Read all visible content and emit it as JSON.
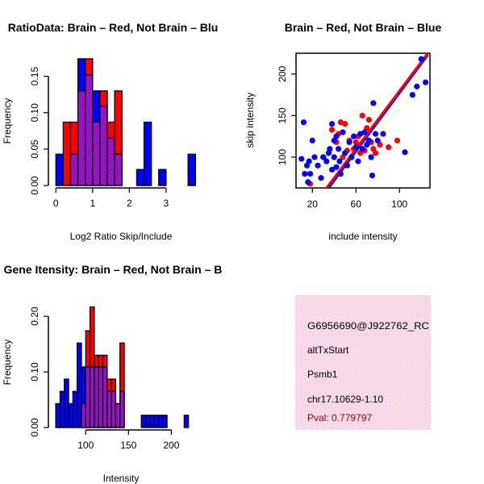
{
  "colors": {
    "red": "#ff0000",
    "blue": "#0000ff",
    "purple": "#a020f0",
    "overlap_hatch": "#8b008b",
    "panel_bg": "#f9e0ef",
    "pval_text": "#8b0000"
  },
  "chart_data": [
    {
      "type": "bar",
      "title": "RatioData: Brain – Red, Not Brain – Blu",
      "xlabel": "Log2 Ratio Skip/Include",
      "ylabel": "Frequency",
      "xlim": [
        -0.05,
        3.75
      ],
      "ylim": [
        0,
        0.175
      ],
      "xticks": [
        0,
        1,
        2,
        3
      ],
      "xtick_labels": [
        "0",
        "1",
        "2",
        "3"
      ],
      "yticks": [
        0.0,
        0.05,
        0.1,
        0.15
      ],
      "ytick_labels": [
        "0.00",
        "0.05",
        "0.10",
        "0.15"
      ],
      "bin_width": 0.2,
      "bin_starts": [
        0.0,
        0.2,
        0.4,
        0.6,
        0.8,
        1.0,
        1.2,
        1.4,
        1.6,
        1.8,
        2.0,
        2.2,
        2.4,
        2.6,
        2.8,
        3.0,
        3.2,
        3.4,
        3.6
      ],
      "series": [
        {
          "name": "Brain",
          "color": "red",
          "values": [
            0.0,
            0.087,
            0.087,
            0.13,
            0.174,
            0.087,
            0.13,
            0.087,
            0.13,
            0.0,
            0.0,
            0.0,
            0.0,
            0.0,
            0.0,
            0.0,
            0.0,
            0.0,
            0.0
          ]
        },
        {
          "name": "Not Brain",
          "color": "blue",
          "values": [
            0.043,
            0.0,
            0.043,
            0.174,
            0.152,
            0.13,
            0.109,
            0.065,
            0.043,
            0.0,
            0.0,
            0.022,
            0.087,
            0.0,
            0.022,
            0.0,
            0.0,
            0.0,
            0.043
          ]
        }
      ]
    },
    {
      "type": "scatter",
      "title": "Brain – Red, Not Brain – Blue",
      "xlabel": "include intensity",
      "ylabel": "skip intensity",
      "xlim": [
        5,
        128
      ],
      "ylim": [
        63,
        225
      ],
      "xticks": [
        20,
        60,
        100
      ],
      "xtick_labels": [
        "20",
        "60",
        "100"
      ],
      "yticks": [
        100,
        150,
        200
      ],
      "ytick_labels": [
        "100",
        "150",
        "200"
      ],
      "series": [
        {
          "name": "Brain",
          "color": "red",
          "points": [
            [
              18,
              68
            ],
            [
              30,
              100
            ],
            [
              38,
              133
            ],
            [
              42,
              118
            ],
            [
              44,
              128
            ],
            [
              46,
              142
            ],
            [
              48,
              100
            ],
            [
              50,
              140
            ],
            [
              52,
              108
            ],
            [
              54,
              120
            ],
            [
              56,
              100
            ],
            [
              58,
              110
            ],
            [
              60,
              118
            ],
            [
              62,
              125
            ],
            [
              64,
              105
            ],
            [
              66,
              150
            ],
            [
              68,
              108
            ],
            [
              70,
              135
            ],
            [
              72,
              145
            ],
            [
              74,
              118
            ],
            [
              76,
              110
            ],
            [
              78,
              105
            ],
            [
              82,
              115
            ],
            [
              90,
              112
            ],
            [
              98,
              120
            ]
          ],
          "fit_line": [
            [
              33,
              63
            ],
            [
              126,
              225
            ]
          ]
        },
        {
          "name": "Not Brain",
          "color": "blue",
          "points": [
            [
              10,
              98
            ],
            [
              12,
              142
            ],
            [
              13,
              80
            ],
            [
              15,
              90
            ],
            [
              16,
              70
            ],
            [
              17,
              95
            ],
            [
              18,
              80
            ],
            [
              20,
              120
            ],
            [
              22,
              100
            ],
            [
              25,
              90
            ],
            [
              28,
              75
            ],
            [
              30,
              100
            ],
            [
              33,
              95
            ],
            [
              35,
              105
            ],
            [
              36,
              110
            ],
            [
              38,
              140
            ],
            [
              38,
              85
            ],
            [
              40,
              100
            ],
            [
              40,
              120
            ],
            [
              42,
              88
            ],
            [
              42,
              125
            ],
            [
              44,
              110
            ],
            [
              45,
              95
            ],
            [
              46,
              80
            ],
            [
              48,
              130
            ],
            [
              50,
              105
            ],
            [
              52,
              90
            ],
            [
              54,
              118
            ],
            [
              56,
              100
            ],
            [
              58,
              125
            ],
            [
              60,
              112
            ],
            [
              62,
              95
            ],
            [
              64,
              128
            ],
            [
              66,
              110
            ],
            [
              68,
              130
            ],
            [
              70,
              115
            ],
            [
              72,
              120
            ],
            [
              74,
              100
            ],
            [
              75,
              78
            ],
            [
              76,
              165
            ],
            [
              78,
              128
            ],
            [
              80,
              120
            ],
            [
              85,
              128
            ],
            [
              105,
              106
            ],
            [
              112,
              175
            ],
            [
              116,
              185
            ],
            [
              120,
              218
            ],
            [
              124,
              190
            ]
          ],
          "fit_line": [
            [
              35,
              63
            ],
            [
              126,
              223
            ]
          ]
        }
      ]
    },
    {
      "type": "bar",
      "title": "Gene Itensity: Brain – Red, Not Brain – B",
      "xlabel": "Intensity",
      "ylabel": "Frequency",
      "xlim": [
        63,
        226
      ],
      "ylim": [
        0,
        0.235
      ],
      "xticks": [
        100,
        150,
        200
      ],
      "xtick_labels": [
        "100",
        "150",
        "200"
      ],
      "yticks": [
        0.0,
        0.1,
        0.2
      ],
      "ytick_labels": [
        "0.00",
        "0.10",
        "0.20"
      ],
      "bin_width": 5,
      "bin_starts": [
        65,
        70,
        75,
        80,
        85,
        90,
        95,
        100,
        105,
        110,
        115,
        120,
        125,
        130,
        135,
        140,
        145,
        150,
        155,
        160,
        165,
        170,
        175,
        180,
        185,
        190,
        195,
        200,
        205,
        210,
        215
      ],
      "series": [
        {
          "name": "Brain",
          "color": "red",
          "values": [
            0.0,
            0.0,
            0.0,
            0.0,
            0.0,
            0.0,
            0.043,
            0.174,
            0.217,
            0.13,
            0.13,
            0.13,
            0.087,
            0.087,
            0.043,
            0.152,
            0.0,
            0.0,
            0.0,
            0.0,
            0.0,
            0.0,
            0.0,
            0.0,
            0.0,
            0.0,
            0.0,
            0.0,
            0.0,
            0.0,
            0.0
          ]
        },
        {
          "name": "Not Brain",
          "color": "blue",
          "values": [
            0.043,
            0.065,
            0.087,
            0.043,
            0.065,
            0.152,
            0.109,
            0.109,
            0.109,
            0.109,
            0.109,
            0.109,
            0.065,
            0.065,
            0.043,
            0.065,
            0.0,
            0.0,
            0.0,
            0.0,
            0.022,
            0.022,
            0.022,
            0.022,
            0.022,
            0.022,
            0.0,
            0.0,
            0.0,
            0.0,
            0.022
          ]
        }
      ]
    }
  ],
  "info_panel": {
    "id_line": "G6956690@J922762_RC",
    "event_type": "altTxStart",
    "gene": "Psmb1",
    "location": "chr17.10629-1.10",
    "pval": "Pval: 0.779797"
  }
}
